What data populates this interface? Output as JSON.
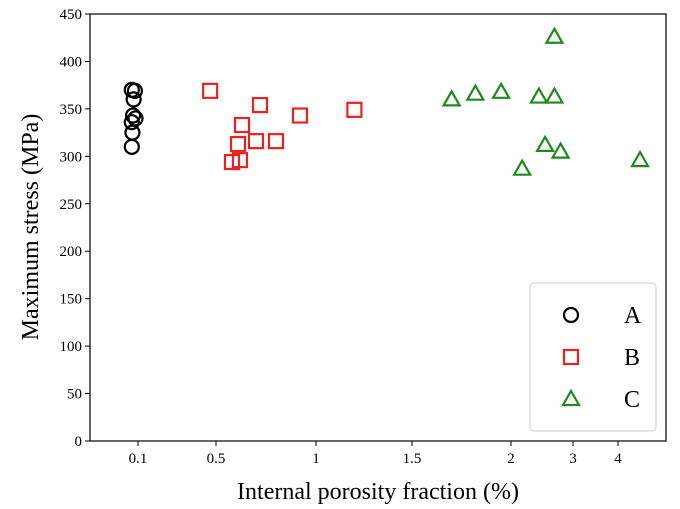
{
  "chart_data": {
    "type": "scatter",
    "title": "",
    "xlabel": "Internal porosity fraction (%)",
    "ylabel": "Maximum stress (MPa)",
    "x_scale": "custom-nonlinear",
    "x_ticks": [
      {
        "value": 0.1,
        "label": "0.1"
      },
      {
        "value": 0.5,
        "label": "0.5"
      },
      {
        "value": 1,
        "label": "1"
      },
      {
        "value": 1.5,
        "label": "1.5"
      },
      {
        "value": 2,
        "label": "2"
      },
      {
        "value": 3,
        "label": "3"
      },
      {
        "value": 4,
        "label": "4"
      }
    ],
    "ylim": [
      0,
      450
    ],
    "y_ticks": [
      0,
      50,
      100,
      150,
      200,
      250,
      300,
      350,
      400,
      450
    ],
    "grid": false,
    "legend": {
      "position": "bottom-right"
    },
    "series": [
      {
        "name": "A",
        "marker": "circle",
        "color": "#000000",
        "points": [
          {
            "x": 0.09,
            "y": 370
          },
          {
            "x": 0.095,
            "y": 369
          },
          {
            "x": 0.093,
            "y": 360
          },
          {
            "x": 0.092,
            "y": 343
          },
          {
            "x": 0.096,
            "y": 340
          },
          {
            "x": 0.09,
            "y": 336
          },
          {
            "x": 0.091,
            "y": 325
          },
          {
            "x": 0.09,
            "y": 310
          }
        ]
      },
      {
        "name": "B",
        "marker": "square",
        "color": "#e8231f",
        "points": [
          {
            "x": 0.47,
            "y": 369
          },
          {
            "x": 0.58,
            "y": 294
          },
          {
            "x": 0.61,
            "y": 313
          },
          {
            "x": 0.62,
            "y": 296
          },
          {
            "x": 0.63,
            "y": 333
          },
          {
            "x": 0.7,
            "y": 316
          },
          {
            "x": 0.72,
            "y": 354
          },
          {
            "x": 0.8,
            "y": 316
          },
          {
            "x": 0.92,
            "y": 343
          },
          {
            "x": 1.2,
            "y": 349
          }
        ]
      },
      {
        "name": "C",
        "marker": "triangle",
        "color": "#1e8a1e",
        "points": [
          {
            "x": 1.7,
            "y": 360
          },
          {
            "x": 1.82,
            "y": 366
          },
          {
            "x": 1.95,
            "y": 368
          },
          {
            "x": 2.18,
            "y": 287
          },
          {
            "x": 2.45,
            "y": 363
          },
          {
            "x": 2.55,
            "y": 312
          },
          {
            "x": 2.7,
            "y": 426
          },
          {
            "x": 2.7,
            "y": 363
          },
          {
            "x": 2.8,
            "y": 305
          },
          {
            "x": 4.5,
            "y": 296
          }
        ]
      }
    ]
  }
}
